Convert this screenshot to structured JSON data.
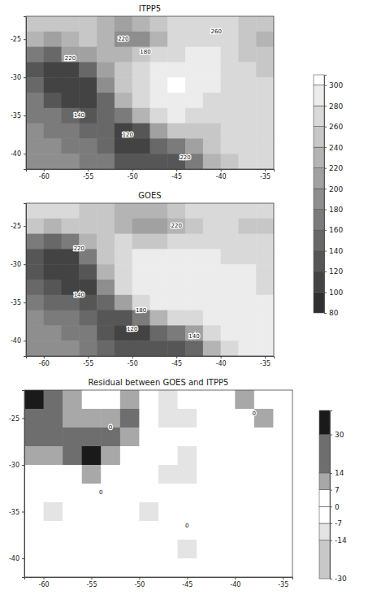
{
  "chart_data": [
    {
      "type": "heatmap",
      "title": "ITPP5",
      "x": [
        -61,
        -59,
        -57,
        -55,
        -53,
        -51,
        -49,
        -47,
        -45,
        -43,
        -41,
        -39,
        -37,
        -35
      ],
      "y": [
        -23,
        -25,
        -27,
        -29,
        -31,
        -33,
        -35,
        -37,
        -39,
        -41
      ],
      "cells": [
        [
          240,
          240,
          250,
          250,
          230,
          210,
          220,
          240,
          260,
          270,
          270,
          260,
          250,
          240
        ],
        [
          220,
          210,
          230,
          240,
          220,
          190,
          180,
          230,
          260,
          270,
          270,
          260,
          240,
          230
        ],
        [
          160,
          140,
          200,
          210,
          220,
          230,
          240,
          260,
          270,
          280,
          280,
          270,
          250,
          240
        ],
        [
          120,
          100,
          100,
          140,
          200,
          240,
          260,
          280,
          290,
          290,
          280,
          270,
          260,
          250
        ],
        [
          140,
          110,
          100,
          110,
          180,
          240,
          270,
          290,
          300,
          290,
          280,
          270,
          260,
          260
        ],
        [
          160,
          130,
          110,
          100,
          140,
          220,
          260,
          290,
          290,
          280,
          270,
          260,
          260,
          260
        ],
        [
          170,
          160,
          140,
          130,
          140,
          160,
          220,
          260,
          280,
          270,
          260,
          260,
          260,
          260
        ],
        [
          180,
          170,
          160,
          150,
          140,
          110,
          130,
          200,
          240,
          250,
          250,
          260,
          260,
          260
        ],
        [
          190,
          180,
          170,
          160,
          150,
          110,
          100,
          140,
          170,
          200,
          240,
          260,
          260,
          260
        ],
        [
          190,
          190,
          180,
          170,
          160,
          130,
          130,
          130,
          120,
          160,
          220,
          250,
          260,
          260
        ]
      ],
      "xlim": [
        -62,
        -34
      ],
      "ylim": [
        -42,
        -22
      ],
      "xticks": [
        -60,
        -55,
        -50,
        -45,
        -40,
        -35
      ],
      "yticks": [
        -25,
        -30,
        -35,
        -40
      ],
      "colorbar": {
        "range": [
          80,
          310
        ],
        "ticks": [
          80,
          100,
          120,
          140,
          160,
          180,
          200,
          220,
          240,
          260,
          280,
          300
        ]
      },
      "annotations": [
        {
          "x": -51,
          "y": -25,
          "label": "220"
        },
        {
          "x": -48.5,
          "y": -26.7,
          "label": "180"
        },
        {
          "x": -40.5,
          "y": -24,
          "label": "260"
        },
        {
          "x": -57,
          "y": -27.5,
          "label": "220"
        },
        {
          "x": -56,
          "y": -35,
          "label": "140"
        },
        {
          "x": -50.5,
          "y": -37.5,
          "label": "120"
        },
        {
          "x": -44,
          "y": -40.5,
          "label": "220"
        }
      ]
    },
    {
      "type": "heatmap",
      "title": "GOES",
      "x": [
        -61,
        -59,
        -57,
        -55,
        -53,
        -51,
        -49,
        -47,
        -45,
        -43,
        -41,
        -39,
        -37,
        -35
      ],
      "y": [
        -23,
        -25,
        -27,
        -29,
        -31,
        -33,
        -35,
        -37,
        -39,
        -41
      ],
      "cells": [
        [
          260,
          260,
          260,
          250,
          240,
          230,
          220,
          230,
          250,
          260,
          270,
          270,
          260,
          260
        ],
        [
          240,
          230,
          250,
          250,
          240,
          230,
          200,
          200,
          220,
          240,
          260,
          260,
          250,
          240
        ],
        [
          160,
          150,
          170,
          220,
          250,
          260,
          250,
          250,
          260,
          270,
          270,
          270,
          260,
          260
        ],
        [
          120,
          100,
          110,
          170,
          240,
          270,
          280,
          280,
          280,
          280,
          280,
          270,
          270,
          270
        ],
        [
          120,
          100,
          100,
          130,
          220,
          270,
          280,
          280,
          280,
          280,
          280,
          280,
          280,
          270
        ],
        [
          140,
          120,
          110,
          110,
          180,
          260,
          280,
          280,
          280,
          280,
          280,
          280,
          280,
          270
        ],
        [
          160,
          150,
          140,
          130,
          150,
          200,
          260,
          280,
          280,
          280,
          280,
          280,
          280,
          280
        ],
        [
          180,
          170,
          160,
          150,
          130,
          120,
          160,
          220,
          260,
          270,
          280,
          280,
          280,
          280
        ],
        [
          190,
          180,
          170,
          160,
          120,
          100,
          110,
          140,
          160,
          200,
          260,
          280,
          280,
          280
        ],
        [
          190,
          190,
          180,
          160,
          140,
          120,
          120,
          130,
          120,
          150,
          220,
          260,
          280,
          280
        ]
      ],
      "xlim": [
        -62,
        -34
      ],
      "ylim": [
        -42,
        -22
      ],
      "xticks": [
        -60,
        -55,
        -50,
        -45,
        -40,
        -35
      ],
      "yticks": [
        -25,
        -30,
        -35,
        -40
      ],
      "annotations": [
        {
          "x": -45,
          "y": -25,
          "label": "220"
        },
        {
          "x": -56,
          "y": -28,
          "label": "220"
        },
        {
          "x": -56,
          "y": -34,
          "label": "140"
        },
        {
          "x": -49,
          "y": -36,
          "label": "180"
        },
        {
          "x": -50,
          "y": -38.5,
          "label": "120"
        },
        {
          "x": -43,
          "y": -39.5,
          "label": "140"
        }
      ]
    },
    {
      "type": "heatmap",
      "title": "Residual between GOES and ITPP5",
      "x": [
        -61,
        -59,
        -57,
        -55,
        -53,
        -51,
        -49,
        -47,
        -45,
        -43,
        -41,
        -39,
        -37,
        -35
      ],
      "y": [
        -23,
        -25,
        -27,
        -29,
        -31,
        -33,
        -35,
        -37,
        -39,
        -41
      ],
      "cells": [
        [
          30,
          20,
          10,
          0,
          0,
          10,
          0,
          -10,
          0,
          0,
          0,
          10,
          0,
          0
        ],
        [
          20,
          20,
          10,
          10,
          10,
          20,
          0,
          -10,
          -10,
          0,
          0,
          0,
          10,
          0
        ],
        [
          14,
          14,
          20,
          20,
          20,
          10,
          0,
          0,
          0,
          0,
          0,
          0,
          0,
          0
        ],
        [
          10,
          10,
          14,
          30,
          10,
          0,
          0,
          0,
          -10,
          0,
          0,
          0,
          0,
          0
        ],
        [
          0,
          0,
          0,
          10,
          0,
          0,
          0,
          -10,
          -10,
          0,
          0,
          0,
          0,
          0
        ],
        [
          0,
          0,
          0,
          0,
          0,
          0,
          0,
          0,
          0,
          0,
          0,
          0,
          0,
          0
        ],
        [
          0,
          -10,
          0,
          0,
          0,
          0,
          -10,
          0,
          0,
          0,
          0,
          0,
          0,
          0
        ],
        [
          0,
          0,
          0,
          0,
          0,
          0,
          0,
          0,
          0,
          0,
          0,
          0,
          0,
          0
        ],
        [
          0,
          0,
          0,
          0,
          0,
          0,
          0,
          0,
          -10,
          0,
          0,
          0,
          0,
          0
        ],
        [
          0,
          0,
          0,
          0,
          0,
          0,
          0,
          0,
          0,
          0,
          0,
          0,
          0,
          0
        ]
      ],
      "xlim": [
        -62,
        -34
      ],
      "ylim": [
        -42,
        -22
      ],
      "xticks": [
        -60,
        -55,
        -50,
        -45,
        -40,
        -35
      ],
      "yticks": [
        -25,
        -30,
        -35,
        -40
      ],
      "colorbar": {
        "range": [
          -30,
          40
        ],
        "ticks": [
          -30,
          -14,
          -7,
          0,
          7,
          14,
          30
        ]
      },
      "annotations": [
        {
          "x": -53,
          "y": -26,
          "label": "0"
        },
        {
          "x": -38,
          "y": -24.5,
          "label": "0"
        },
        {
          "x": -54,
          "y": -33,
          "label": "0"
        },
        {
          "x": -45,
          "y": -36.5,
          "label": "0"
        }
      ]
    }
  ]
}
